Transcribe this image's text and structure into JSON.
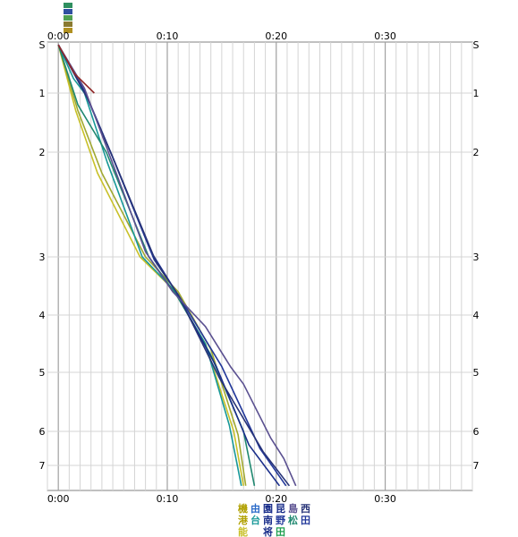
{
  "top_legend_colors": [
    "#2f8f5f",
    "#3050a0",
    "#50a050",
    "#8a7a30",
    "#b09020"
  ],
  "chart_data": {
    "type": "line",
    "x_axis": {
      "unit": "minutes",
      "range": [
        -1,
        38
      ],
      "ticks": [
        0,
        10,
        20,
        30
      ],
      "tick_labels": [
        "0:00",
        "0:10",
        "0:20",
        "0:30"
      ],
      "minor_step": 1
    },
    "y_axis": {
      "reversed": true,
      "stations": [
        {
          "label": "S",
          "pos": 0
        },
        {
          "label": "1",
          "pos": 1
        },
        {
          "label": "2",
          "pos": 2
        },
        {
          "label": "3",
          "pos": 3
        },
        {
          "label": "4",
          "pos": 4
        },
        {
          "label": "5",
          "pos": 5
        },
        {
          "label": "6",
          "pos": 6
        },
        {
          "label": "7",
          "pos": 7
        }
      ]
    },
    "grid": true,
    "series": [
      {
        "color": "#c8c028",
        "points": [
          [
            0,
            0
          ],
          [
            1.6,
            1.3
          ],
          [
            3.6,
            2.2
          ],
          [
            7.5,
            3.0
          ],
          [
            10.5,
            3.55
          ],
          [
            13.5,
            4.5
          ],
          [
            16.1,
            6.0
          ],
          [
            17.0,
            7.6
          ]
        ]
      },
      {
        "color": "#a0a830",
        "points": [
          [
            0,
            0
          ],
          [
            1.8,
            1.3
          ],
          [
            4.0,
            2.2
          ],
          [
            8.0,
            3.0
          ],
          [
            11.0,
            3.6
          ],
          [
            14.0,
            4.6
          ],
          [
            16.5,
            6.1
          ],
          [
            17.2,
            7.6
          ]
        ]
      },
      {
        "color": "#189898",
        "points": [
          [
            0,
            0
          ],
          [
            1.4,
            0.7
          ],
          [
            2.4,
            1.0
          ],
          [
            4.5,
            2.1
          ],
          [
            7.7,
            3.0
          ],
          [
            10.5,
            3.55
          ],
          [
            13.5,
            4.5
          ],
          [
            15.7,
            5.9
          ],
          [
            16.8,
            7.6
          ]
        ]
      },
      {
        "color": "#208870",
        "points": [
          [
            0,
            0
          ],
          [
            1.8,
            1.2
          ],
          [
            4.4,
            2.0
          ],
          [
            8.3,
            3.0
          ],
          [
            11.0,
            3.7
          ],
          [
            14.0,
            4.7
          ],
          [
            17.0,
            6.0
          ],
          [
            18.0,
            7.6
          ]
        ]
      },
      {
        "color": "#1a2e8a",
        "points": [
          [
            0,
            0
          ],
          [
            2.5,
            1.0
          ],
          [
            4.8,
            2.0
          ],
          [
            8.5,
            2.95
          ],
          [
            10.8,
            3.6
          ],
          [
            14.5,
            4.9
          ],
          [
            17.5,
            6.4
          ],
          [
            20.3,
            7.6
          ]
        ]
      },
      {
        "color": "#22389a",
        "points": [
          [
            0,
            0
          ],
          [
            2.6,
            1.05
          ],
          [
            5.0,
            2.05
          ],
          [
            8.8,
            3.05
          ],
          [
            11.0,
            3.65
          ],
          [
            15.0,
            4.9
          ],
          [
            18.5,
            6.5
          ],
          [
            20.9,
            7.6
          ]
        ]
      },
      {
        "color": "#283478",
        "points": [
          [
            0,
            0
          ],
          [
            2.7,
            1.1
          ],
          [
            5.2,
            2.1
          ],
          [
            9.0,
            3.1
          ],
          [
            11.0,
            3.65
          ],
          [
            14.8,
            5.1
          ],
          [
            18.8,
            6.6
          ],
          [
            21.2,
            7.6
          ]
        ]
      },
      {
        "color": "#5a5090",
        "points": [
          [
            0,
            0
          ],
          [
            2.4,
            0.9
          ],
          [
            4.6,
            2.0
          ],
          [
            8.0,
            2.95
          ],
          [
            10.5,
            3.6
          ],
          [
            13.5,
            4.2
          ],
          [
            15.8,
            4.9
          ],
          [
            17.0,
            5.2
          ],
          [
            19.5,
            6.2
          ],
          [
            20.7,
            6.8
          ],
          [
            21.8,
            7.6
          ]
        ]
      },
      {
        "color": "#902828",
        "points": [
          [
            0,
            0
          ],
          [
            1.5,
            0.6
          ],
          [
            3.3,
            1.0
          ]
        ]
      }
    ]
  },
  "legend": {
    "rows": [
      [
        {
          "text": "機",
          "color": "#b0a000"
        },
        {
          "text": "由",
          "color": "#2a6ac8"
        },
        {
          "text": "園",
          "color": "#1a2e8a"
        },
        {
          "text": "昆",
          "color": "#1a2e8a"
        },
        {
          "text": "島",
          "color": "#5a5090"
        },
        {
          "text": "西",
          "color": "#283478"
        }
      ],
      [
        {
          "text": "港",
          "color": "#b0a000"
        },
        {
          "text": "台",
          "color": "#189898"
        },
        {
          "text": "南",
          "color": "#1a2e8a"
        },
        {
          "text": "野",
          "color": "#22389a"
        },
        {
          "text": "松",
          "color": "#208870"
        },
        {
          "text": "田",
          "color": "#22389a"
        }
      ],
      [
        {
          "text": "能",
          "color": "#c8c028"
        },
        {
          "text": "",
          "color": "#000"
        },
        {
          "text": "将",
          "color": "#1a2e8a"
        },
        {
          "text": "田",
          "color": "#20a050"
        }
      ]
    ]
  }
}
